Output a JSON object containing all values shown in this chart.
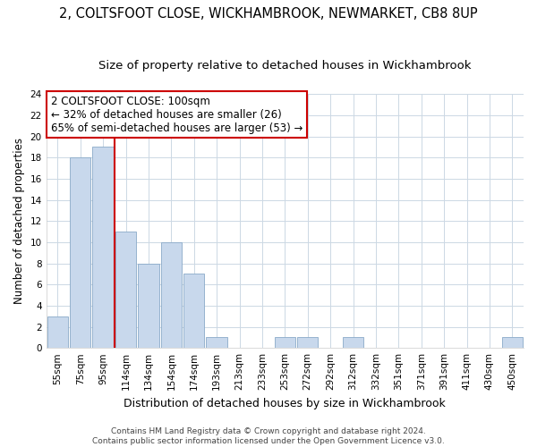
{
  "title1": "2, COLTSFOOT CLOSE, WICKHAMBROOK, NEWMARKET, CB8 8UP",
  "title2": "Size of property relative to detached houses in Wickhambrook",
  "xlabel": "Distribution of detached houses by size in Wickhambrook",
  "ylabel": "Number of detached properties",
  "bar_labels": [
    "55sqm",
    "75sqm",
    "95sqm",
    "114sqm",
    "134sqm",
    "154sqm",
    "174sqm",
    "193sqm",
    "213sqm",
    "233sqm",
    "253sqm",
    "272sqm",
    "292sqm",
    "312sqm",
    "332sqm",
    "351sqm",
    "371sqm",
    "391sqm",
    "411sqm",
    "430sqm",
    "450sqm"
  ],
  "bar_values": [
    3,
    18,
    19,
    11,
    8,
    10,
    7,
    1,
    0,
    0,
    1,
    1,
    0,
    1,
    0,
    0,
    0,
    0,
    0,
    0,
    1
  ],
  "bar_color": "#c8d8ec",
  "bar_edge_color": "#8aaac8",
  "grid_color": "#ccd8e4",
  "vline_x": 2.5,
  "vline_color": "#cc0000",
  "annotation_title": "2 COLTSFOOT CLOSE: 100sqm",
  "annotation_line1": "← 32% of detached houses are smaller (26)",
  "annotation_line2": "65% of semi-detached houses are larger (53) →",
  "annotation_box_color": "#ffffff",
  "annotation_box_edge": "#cc0000",
  "ylim": [
    0,
    24
  ],
  "yticks": [
    0,
    2,
    4,
    6,
    8,
    10,
    12,
    14,
    16,
    18,
    20,
    22,
    24
  ],
  "footer1": "Contains HM Land Registry data © Crown copyright and database right 2024.",
  "footer2": "Contains public sector information licensed under the Open Government Licence v3.0.",
  "title1_fontsize": 10.5,
  "title2_fontsize": 9.5,
  "xlabel_fontsize": 9,
  "ylabel_fontsize": 8.5,
  "tick_fontsize": 7.5,
  "annotation_fontsize": 8.5,
  "footer_fontsize": 6.5
}
